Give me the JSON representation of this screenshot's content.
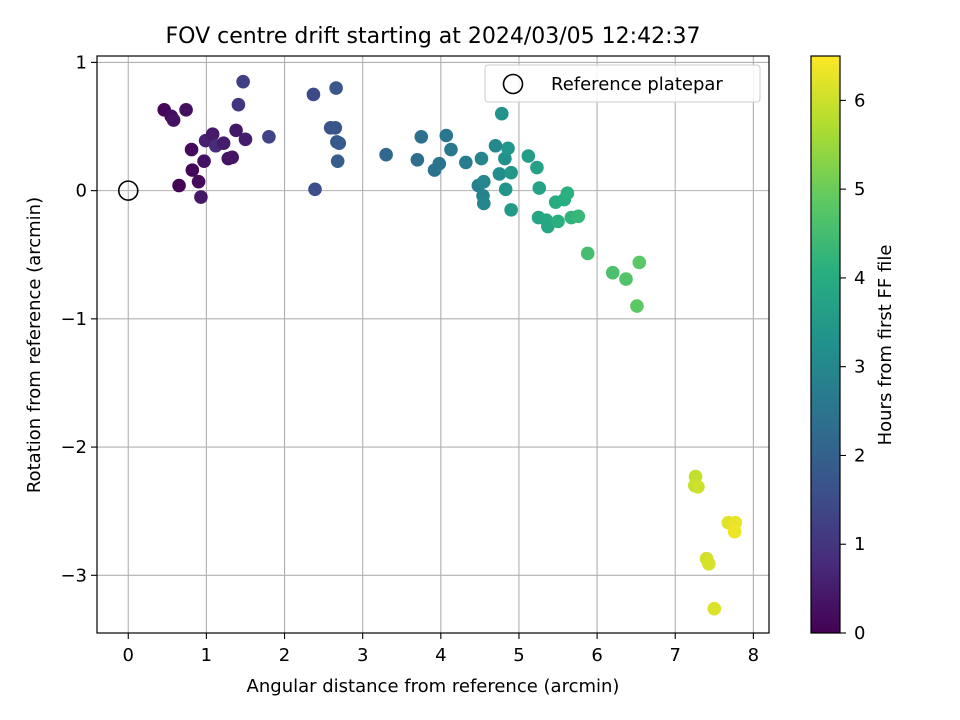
{
  "chart_data": {
    "type": "scatter",
    "title": "FOV centre drift starting at 2024/03/05 12:42:37",
    "xlabel": "Angular distance from reference (arcmin)",
    "ylabel": "Rotation from reference (arcmin)",
    "xlim": [
      -0.4,
      8.2
    ],
    "ylim": [
      -3.45,
      1.05
    ],
    "xticks": [
      0,
      1,
      2,
      3,
      4,
      5,
      6,
      7,
      8
    ],
    "yticks": [
      1,
      0,
      -1,
      -2,
      -3
    ],
    "xtick_labels": [
      "0",
      "1",
      "2",
      "3",
      "4",
      "5",
      "6",
      "7",
      "8"
    ],
    "ytick_labels": [
      "1",
      "0",
      "−1",
      "−2",
      "−3"
    ],
    "grid": true,
    "legend": {
      "position": "upper right",
      "entries": [
        "Reference platepar"
      ]
    },
    "colorbar": {
      "label": "Hours from first FF file",
      "colormap": "viridis",
      "range": [
        0,
        6.5
      ],
      "ticks": [
        0,
        1,
        2,
        3,
        4,
        5,
        6
      ],
      "tick_labels": [
        "0",
        "1",
        "2",
        "3",
        "4",
        "5",
        "6"
      ]
    },
    "reference_point": {
      "name": "Reference platepar",
      "x": 0,
      "y": 0
    },
    "series": [
      {
        "colormap": "viridis",
        "points": [
          {
            "x": 0.46,
            "y": 0.63,
            "c": 0.1
          },
          {
            "x": 0.55,
            "y": 0.58,
            "c": 0.2
          },
          {
            "x": 0.58,
            "y": 0.55,
            "c": 0.3
          },
          {
            "x": 0.74,
            "y": 0.63,
            "c": 0.25
          },
          {
            "x": 0.81,
            "y": 0.32,
            "c": 0.15
          },
          {
            "x": 0.82,
            "y": 0.16,
            "c": 0.1
          },
          {
            "x": 0.65,
            "y": 0.04,
            "c": 0.05
          },
          {
            "x": 0.9,
            "y": 0.07,
            "c": 0.2
          },
          {
            "x": 0.93,
            "y": -0.05,
            "c": 0.4
          },
          {
            "x": 0.97,
            "y": 0.23,
            "c": 0.3
          },
          {
            "x": 0.99,
            "y": 0.39,
            "c": 0.6
          },
          {
            "x": 1.08,
            "y": 0.44,
            "c": 0.45
          },
          {
            "x": 1.12,
            "y": 0.35,
            "c": 0.8
          },
          {
            "x": 1.22,
            "y": 0.37,
            "c": 0.5
          },
          {
            "x": 1.28,
            "y": 0.25,
            "c": 0.3
          },
          {
            "x": 1.33,
            "y": 0.26,
            "c": 0.35
          },
          {
            "x": 1.38,
            "y": 0.47,
            "c": 0.4
          },
          {
            "x": 1.41,
            "y": 0.67,
            "c": 1.05
          },
          {
            "x": 1.47,
            "y": 0.85,
            "c": 1.2
          },
          {
            "x": 1.5,
            "y": 0.4,
            "c": 0.5
          },
          {
            "x": 1.8,
            "y": 0.42,
            "c": 1.3
          },
          {
            "x": 2.37,
            "y": 0.75,
            "c": 1.45
          },
          {
            "x": 2.39,
            "y": 0.01,
            "c": 1.55
          },
          {
            "x": 2.59,
            "y": 0.49,
            "c": 1.65
          },
          {
            "x": 2.65,
            "y": 0.49,
            "c": 1.7
          },
          {
            "x": 2.66,
            "y": 0.8,
            "c": 1.75
          },
          {
            "x": 2.67,
            "y": 0.38,
            "c": 1.8
          },
          {
            "x": 2.7,
            "y": 0.37,
            "c": 1.85
          },
          {
            "x": 2.68,
            "y": 0.23,
            "c": 1.9
          },
          {
            "x": 3.3,
            "y": 0.28,
            "c": 2.2
          },
          {
            "x": 3.7,
            "y": 0.24,
            "c": 2.3
          },
          {
            "x": 3.75,
            "y": 0.42,
            "c": 2.4
          },
          {
            "x": 3.92,
            "y": 0.16,
            "c": 2.45
          },
          {
            "x": 3.98,
            "y": 0.21,
            "c": 2.5
          },
          {
            "x": 4.07,
            "y": 0.43,
            "c": 2.55
          },
          {
            "x": 4.13,
            "y": 0.32,
            "c": 2.6
          },
          {
            "x": 4.32,
            "y": 0.22,
            "c": 2.7
          },
          {
            "x": 4.48,
            "y": 0.04,
            "c": 2.8
          },
          {
            "x": 4.52,
            "y": 0.25,
            "c": 2.9
          },
          {
            "x": 4.54,
            "y": -0.04,
            "c": 2.85
          },
          {
            "x": 4.55,
            "y": 0.07,
            "c": 2.95
          },
          {
            "x": 4.55,
            "y": -0.1,
            "c": 3.0
          },
          {
            "x": 4.7,
            "y": 0.35,
            "c": 3.05
          },
          {
            "x": 4.75,
            "y": 0.13,
            "c": 3.15
          },
          {
            "x": 4.78,
            "y": 0.6,
            "c": 3.3
          },
          {
            "x": 4.82,
            "y": 0.25,
            "c": 3.25
          },
          {
            "x": 4.83,
            "y": 0.01,
            "c": 3.35
          },
          {
            "x": 4.86,
            "y": 0.33,
            "c": 3.4
          },
          {
            "x": 4.9,
            "y": 0.14,
            "c": 3.45
          },
          {
            "x": 4.9,
            "y": -0.15,
            "c": 3.5
          },
          {
            "x": 5.12,
            "y": 0.27,
            "c": 3.6
          },
          {
            "x": 5.23,
            "y": 0.18,
            "c": 3.7
          },
          {
            "x": 5.26,
            "y": 0.02,
            "c": 3.75
          },
          {
            "x": 5.25,
            "y": -0.21,
            "c": 3.8
          },
          {
            "x": 5.35,
            "y": -0.23,
            "c": 3.9
          },
          {
            "x": 5.37,
            "y": -0.28,
            "c": 3.85
          },
          {
            "x": 5.47,
            "y": -0.09,
            "c": 4.0
          },
          {
            "x": 5.5,
            "y": -0.24,
            "c": 4.1
          },
          {
            "x": 5.58,
            "y": -0.07,
            "c": 4.05
          },
          {
            "x": 5.62,
            "y": -0.02,
            "c": 4.1
          },
          {
            "x": 5.67,
            "y": -0.21,
            "c": 4.2
          },
          {
            "x": 5.76,
            "y": -0.2,
            "c": 4.3
          },
          {
            "x": 5.88,
            "y": -0.49,
            "c": 4.5
          },
          {
            "x": 6.2,
            "y": -0.64,
            "c": 4.6
          },
          {
            "x": 6.37,
            "y": -0.69,
            "c": 4.7
          },
          {
            "x": 6.54,
            "y": -0.56,
            "c": 4.8
          },
          {
            "x": 6.51,
            "y": -0.9,
            "c": 4.85
          },
          {
            "x": 7.26,
            "y": -2.23,
            "c": 5.9
          },
          {
            "x": 7.25,
            "y": -2.3,
            "c": 5.95
          },
          {
            "x": 7.29,
            "y": -2.31,
            "c": 6.0
          },
          {
            "x": 7.4,
            "y": -2.87,
            "c": 6.05
          },
          {
            "x": 7.43,
            "y": -2.91,
            "c": 6.1
          },
          {
            "x": 7.5,
            "y": -3.26,
            "c": 6.15
          },
          {
            "x": 7.68,
            "y": -2.59,
            "c": 6.2
          },
          {
            "x": 7.77,
            "y": -2.59,
            "c": 6.3
          },
          {
            "x": 7.76,
            "y": -2.66,
            "c": 6.35
          }
        ]
      }
    ]
  }
}
